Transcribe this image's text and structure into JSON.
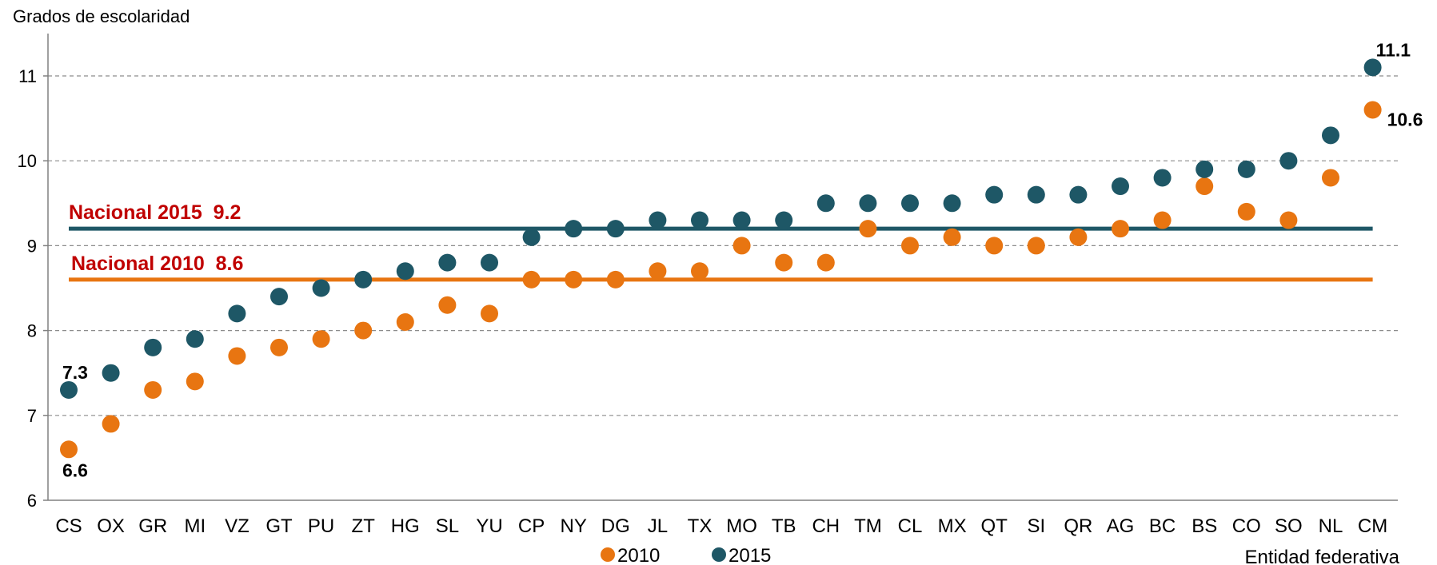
{
  "chart_data": {
    "type": "scatter",
    "ylabel": "Grados de escolaridad",
    "xlabel": "Entidad federativa",
    "ylim": [
      6,
      11
    ],
    "yticks": [
      "6",
      "7",
      "8",
      "9",
      "10",
      "11"
    ],
    "grid": "horizontal dashed",
    "legend_position": "bottom",
    "categories": [
      "CS",
      "OX",
      "GR",
      "MI",
      "VZ",
      "GT",
      "PU",
      "ZT",
      "HG",
      "SL",
      "YU",
      "CP",
      "NY",
      "DG",
      "JL",
      "TX",
      "MO",
      "TB",
      "CH",
      "TM",
      "CL",
      "MX",
      "QT",
      "SI",
      "QR",
      "AG",
      "BC",
      "BS",
      "CO",
      "SO",
      "NL",
      "CM"
    ],
    "series": [
      {
        "name": "2010",
        "color": "#E87511",
        "values": [
          6.6,
          6.9,
          7.3,
          7.4,
          7.7,
          7.8,
          7.9,
          8.0,
          8.1,
          8.3,
          8.2,
          8.6,
          8.6,
          8.6,
          8.7,
          8.7,
          9.0,
          8.8,
          8.8,
          9.2,
          9.0,
          9.1,
          9.0,
          9.0,
          9.1,
          9.2,
          9.3,
          9.7,
          9.4,
          9.3,
          9.8,
          10.6
        ]
      },
      {
        "name": "2015",
        "color": "#1E5766",
        "values": [
          7.3,
          7.5,
          7.8,
          7.9,
          8.2,
          8.4,
          8.5,
          8.6,
          8.7,
          8.8,
          8.8,
          9.1,
          9.2,
          9.2,
          9.3,
          9.3,
          9.3,
          9.3,
          9.5,
          9.5,
          9.5,
          9.5,
          9.6,
          9.6,
          9.6,
          9.7,
          9.8,
          9.9,
          9.9,
          10.0,
          10.3,
          11.1
        ]
      }
    ],
    "reference_lines": [
      {
        "label": "Nacional 2015  9.2",
        "value": 9.2,
        "color": "#1E5766",
        "label_color": "#C00000"
      },
      {
        "label": "Nacional 2010  8.6",
        "value": 8.6,
        "color": "#E87511",
        "label_color": "#C00000"
      }
    ],
    "annotations": [
      {
        "text": "7.3",
        "series": "2015",
        "category": "CS"
      },
      {
        "text": "6.6",
        "series": "2010",
        "category": "CS"
      },
      {
        "text": "11.1",
        "series": "2015",
        "category": "CM"
      },
      {
        "text": "10.6",
        "series": "2010",
        "category": "CM"
      }
    ]
  }
}
